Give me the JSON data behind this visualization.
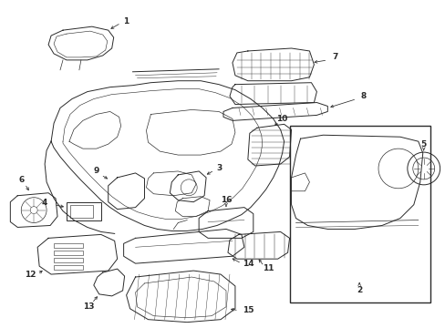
{
  "bg_color": "#ffffff",
  "line_color": "#2a2a2a",
  "fig_width": 4.89,
  "fig_height": 3.6,
  "dpi": 100,
  "lw": 0.7,
  "fontsize": 6.5
}
